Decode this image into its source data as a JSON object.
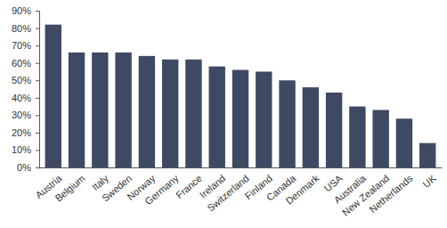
{
  "chart_data": {
    "type": "bar",
    "categories": [
      "Austria",
      "Belgium",
      "Italy",
      "Sweden",
      "Norway",
      "Germany",
      "France",
      "Ireland",
      "Switzerland",
      "Finland",
      "Canada",
      "Denmark",
      "USA",
      "Australia",
      "New Zealand",
      "Netherlands",
      "UK"
    ],
    "values": [
      82,
      66,
      66,
      66,
      64,
      62,
      62,
      58,
      56,
      55,
      50,
      46,
      43,
      35,
      33,
      28,
      14
    ],
    "color": "#3e4a64",
    "ylim": [
      0,
      90
    ],
    "yticks": [
      {
        "value": 0,
        "label": "0%"
      },
      {
        "value": 10,
        "label": "10%"
      },
      {
        "value": 20,
        "label": "20%"
      },
      {
        "value": 30,
        "label": "30%"
      },
      {
        "value": 40,
        "label": "40%"
      },
      {
        "value": 50,
        "label": "50%"
      },
      {
        "value": 60,
        "label": "60%"
      },
      {
        "value": 70,
        "label": "70%"
      },
      {
        "value": 80,
        "label": "80%"
      },
      {
        "value": 90,
        "label": "90%"
      }
    ],
    "grid": false
  }
}
